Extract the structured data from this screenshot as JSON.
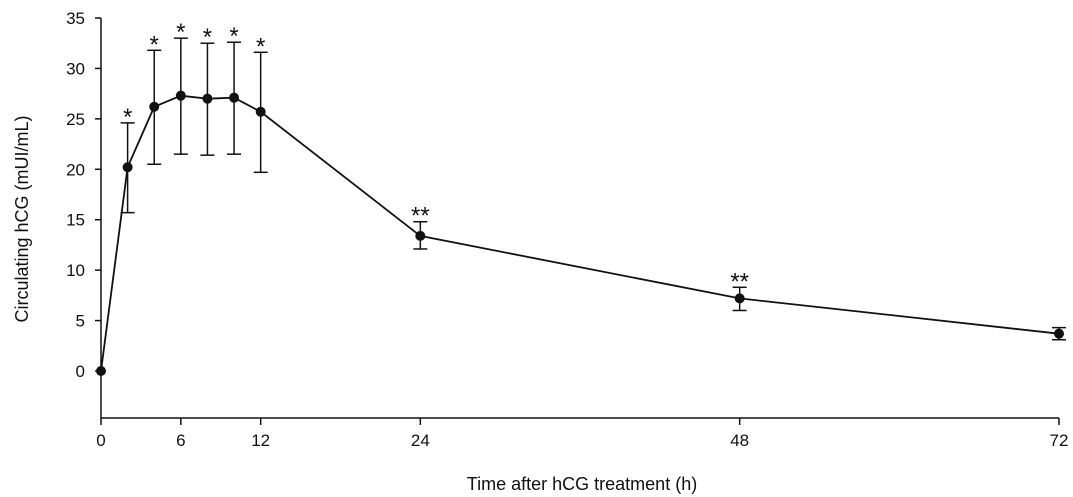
{
  "chart_data": {
    "type": "line",
    "title": "",
    "xlabel": "Time after hCG treatment (h)",
    "ylabel": "Circulating hCG (mUI/mL)",
    "xlim": [
      0,
      72
    ],
    "ylim": [
      -4.5,
      35
    ],
    "x_ticks": [
      0,
      6,
      12,
      24,
      48,
      72
    ],
    "x_tick_labels": [
      "0",
      "6",
      "12",
      "24",
      "48",
      "72"
    ],
    "y_ticks": [
      0,
      5,
      10,
      15,
      20,
      25,
      30,
      35
    ],
    "y_tick_labels": [
      "0",
      "5",
      "10",
      "15",
      "20",
      "25",
      "30",
      "35"
    ],
    "grid": false,
    "legend": "none",
    "colors": {
      "line": "#111111",
      "marker": "#111111",
      "axis": "#111111"
    },
    "series": [
      {
        "x": [
          0,
          2,
          4,
          6,
          8,
          10,
          12,
          24,
          48,
          72
        ],
        "y": [
          0,
          20.2,
          26.2,
          27.3,
          27.0,
          27.1,
          25.7,
          13.4,
          7.2,
          3.7
        ],
        "err_upper": [
          0,
          24.6,
          31.8,
          33.0,
          32.5,
          32.6,
          31.6,
          14.8,
          8.3,
          4.3
        ],
        "err_lower": [
          0,
          15.7,
          20.5,
          21.5,
          21.4,
          21.5,
          19.7,
          12.1,
          6.0,
          3.1
        ],
        "annotations": [
          "",
          "*",
          "*",
          "*",
          "*",
          "*",
          "*",
          "**",
          "**",
          ""
        ]
      }
    ]
  }
}
